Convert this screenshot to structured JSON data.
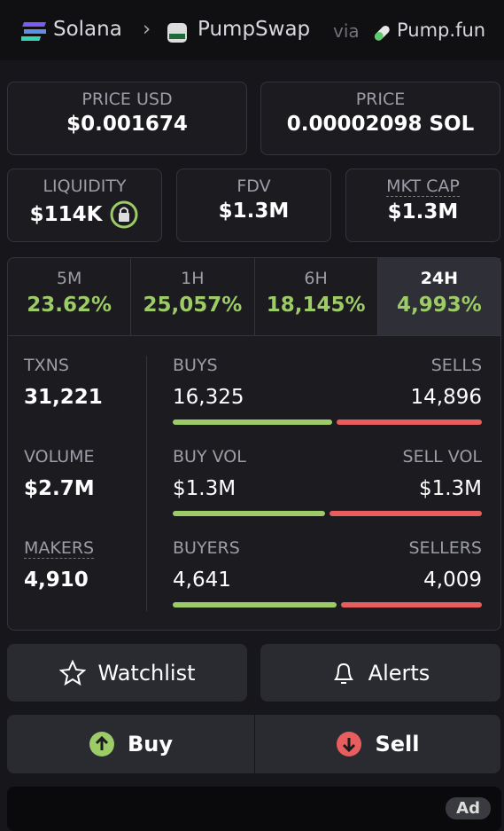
{
  "breadcrumb": {
    "chain": "Solana",
    "dex": "PumpSwap",
    "via": "via",
    "launchpad": "Pump.fun"
  },
  "price_usd": {
    "label": "PRICE USD",
    "value": "$0.001674"
  },
  "price": {
    "label": "PRICE",
    "value": "0.00002098 SOL"
  },
  "metrics": [
    {
      "label": "LIQUIDITY",
      "value": "$114K"
    },
    {
      "label": "FDV",
      "value": "$1.3M"
    },
    {
      "label": "MKT CAP",
      "value": "$1.3M"
    }
  ],
  "timeframes": [
    {
      "label": "5M",
      "change": "23.62%"
    },
    {
      "label": "1H",
      "change": "25,057%"
    },
    {
      "label": "6H",
      "change": "18,145%"
    },
    {
      "label": "24H",
      "change": "4,993%"
    }
  ],
  "active_timeframe": 3,
  "stats": [
    {
      "label": "TXNS",
      "value": "31,221",
      "left_label": "BUYS",
      "left": {
        "value": 16325,
        "label": "16,325"
      },
      "right_label": "SELLS",
      "right": {
        "value": 14896,
        "label": "14,896"
      }
    },
    {
      "label": "VOLUME",
      "value": "$2.7M",
      "left_label": "BUY VOL",
      "left": {
        "value": 1300000,
        "label": "$1.3M"
      },
      "right_label": "SELL VOL",
      "right": {
        "value": 1300000,
        "label": "$1.3M"
      }
    },
    {
      "label": "MAKERS",
      "value": "4,910",
      "left_label": "BUYERS",
      "left": {
        "value": 4641,
        "label": "4,641"
      },
      "right_label": "SELLERS",
      "right": {
        "value": 4009,
        "label": "4,009"
      }
    }
  ],
  "buttons": {
    "watchlist": "Watchlist",
    "alerts": "Alerts",
    "buy": "Buy",
    "sell": "Sell"
  },
  "ad": "Ad"
}
